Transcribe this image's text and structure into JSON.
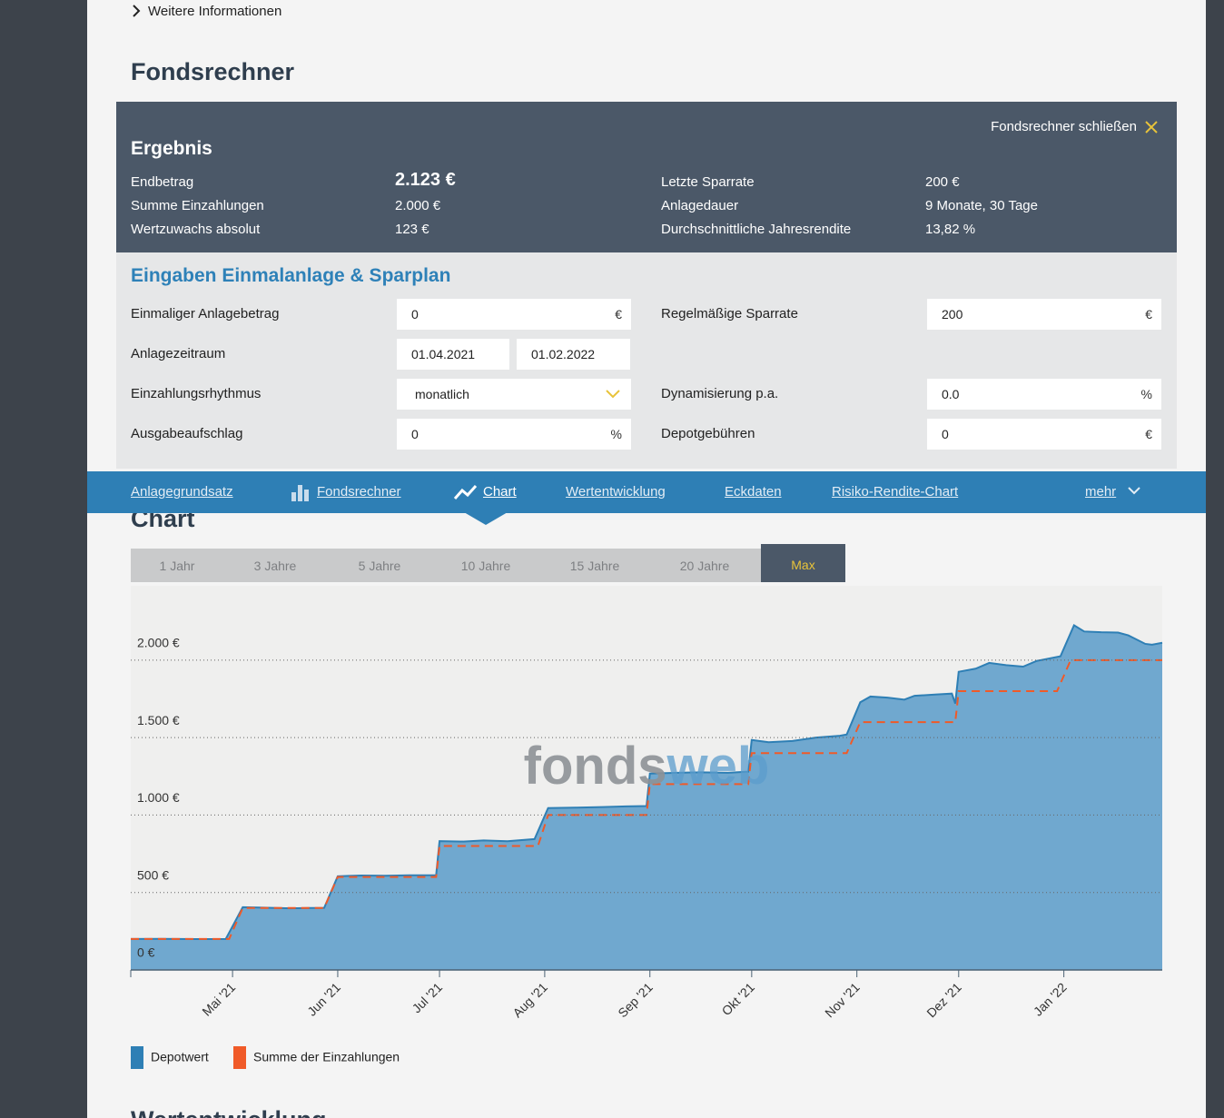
{
  "header": {
    "more_info": "Weitere Informationen",
    "title": "Fondsrechner"
  },
  "result": {
    "close": "Fondsrechner schließen",
    "title": "Ergebnis",
    "left": [
      {
        "label": "Endbetrag",
        "value": "2.123 €"
      },
      {
        "label": "Summe Einzahlungen",
        "value": "2.000 €"
      },
      {
        "label": "Wertzuwachs absolut",
        "value": "123 €"
      }
    ],
    "right": [
      {
        "label": "Letzte Sparrate",
        "value": "200 €"
      },
      {
        "label": "Anlagedauer",
        "value": "9 Monate, 30 Tage"
      },
      {
        "label": "Durchschnittliche Jahresrendite",
        "value": "13,82 %"
      }
    ]
  },
  "inputs": {
    "title": "Eingaben Einmalanlage & Sparplan",
    "fields": [
      {
        "label": "Einmaliger Anlagebetrag",
        "value": "0",
        "unit": "€"
      },
      {
        "label": "Regelmäßige Sparrate",
        "value": "200",
        "unit": "€"
      },
      {
        "label": "Anlagezeitraum",
        "from": "01.04.2021",
        "to": "01.02.2022"
      },
      {
        "label": "Einzahlungsrhythmus",
        "value": "monatlich"
      },
      {
        "label": "Dynamisierung p.a.",
        "value": "0.0",
        "unit": "%"
      },
      {
        "label": "Ausgabeaufschlag",
        "value": "0",
        "unit": "%"
      },
      {
        "label": "Depotgebühren",
        "value": "0",
        "unit": "€"
      }
    ]
  },
  "nav": {
    "items": [
      "Anlagegrundsatz",
      "Fondsrechner",
      "Chart",
      "Wertentwicklung",
      "Eckdaten",
      "Risiko-Rendite-Chart",
      "mehr"
    ]
  },
  "section_title": "Chart",
  "ranges": [
    "1 Jahr",
    "3 Jahre",
    "5 Jahre",
    "10 Jahre",
    "15 Jahre",
    "20 Jahre",
    "Max"
  ],
  "chart_data": {
    "type": "area",
    "watermark": [
      "fonds",
      "web"
    ],
    "xlim": [
      "2021-04-01",
      "2022-01-30"
    ],
    "xticks": [
      {
        "value": "2021-05-01",
        "label": "Mai '21"
      },
      {
        "value": "2021-06-01",
        "label": "Jun '21"
      },
      {
        "value": "2021-07-01",
        "label": "Jul '21"
      },
      {
        "value": "2021-08-01",
        "label": "Aug '21"
      },
      {
        "value": "2021-09-01",
        "label": "Sep '21"
      },
      {
        "value": "2021-10-01",
        "label": "Okt '21"
      },
      {
        "value": "2021-11-01",
        "label": "Nov '21"
      },
      {
        "value": "2021-12-01",
        "label": "Dez '21"
      },
      {
        "value": "2022-01-01",
        "label": "Jan '22"
      }
    ],
    "ylim": [
      0,
      2480
    ],
    "yticks": [
      {
        "value": 0,
        "label": "0 €"
      },
      {
        "value": 500,
        "label": "500 €"
      },
      {
        "value": 1000,
        "label": "1.000 €"
      },
      {
        "value": 1500,
        "label": "1.500 €"
      },
      {
        "value": 2000,
        "label": "2.000 €"
      }
    ],
    "grid": true,
    "series": [
      {
        "name": "Depotwert",
        "color": "#2e7fb5",
        "fill": "#70a8cf",
        "style": "area",
        "x": [
          "2021-04-01",
          "2021-04-10",
          "2021-04-20",
          "2021-04-29",
          "2021-05-04",
          "2021-05-10",
          "2021-05-18",
          "2021-05-24",
          "2021-05-28",
          "2021-06-01",
          "2021-06-08",
          "2021-06-15",
          "2021-06-22",
          "2021-06-30",
          "2021-07-01",
          "2021-07-08",
          "2021-07-14",
          "2021-07-21",
          "2021-07-29",
          "2021-08-02",
          "2021-08-10",
          "2021-08-18",
          "2021-08-25",
          "2021-08-31",
          "2021-09-01",
          "2021-09-08",
          "2021-09-16",
          "2021-09-24",
          "2021-09-30",
          "2021-10-01",
          "2021-10-06",
          "2021-10-13",
          "2021-10-20",
          "2021-10-27",
          "2021-10-29",
          "2021-11-02",
          "2021-11-05",
          "2021-11-10",
          "2021-11-15",
          "2021-11-18",
          "2021-11-24",
          "2021-11-29",
          "2021-11-30",
          "2021-12-01",
          "2021-12-06",
          "2021-12-10",
          "2021-12-15",
          "2021-12-20",
          "2021-12-24",
          "2021-12-31",
          "2022-01-04",
          "2022-01-07",
          "2022-01-12",
          "2022-01-17",
          "2022-01-20",
          "2022-01-25",
          "2022-01-27",
          "2022-01-30"
        ],
        "values": [
          200,
          201,
          199,
          200,
          405,
          402,
          398,
          400,
          401,
          605,
          610,
          608,
          611,
          612,
          832,
          829,
          836,
          831,
          845,
          1045,
          1048,
          1052,
          1056,
          1058,
          1268,
          1272,
          1276,
          1273,
          1280,
          1485,
          1470,
          1478,
          1500,
          1512,
          1520,
          1728,
          1765,
          1758,
          1745,
          1770,
          1778,
          1784,
          1720,
          1925,
          1945,
          1982,
          1968,
          1958,
          1995,
          2025,
          2225,
          2185,
          2180,
          2178,
          2160,
          2105,
          2100,
          2112
        ]
      },
      {
        "name": "Summe der Einzahlungen",
        "color": "#f05a28",
        "style": "dashed",
        "x": [
          "2021-04-01",
          "2021-04-30",
          "2021-05-04",
          "2021-05-28",
          "2021-06-01",
          "2021-06-30",
          "2021-07-01",
          "2021-07-30",
          "2021-08-02",
          "2021-08-31",
          "2021-09-01",
          "2021-09-30",
          "2021-10-01",
          "2021-10-29",
          "2021-11-02",
          "2021-11-30",
          "2021-12-01",
          "2021-12-30",
          "2022-01-03",
          "2022-01-30"
        ],
        "values": [
          200,
          200,
          400,
          400,
          600,
          600,
          800,
          800,
          1000,
          1000,
          1200,
          1200,
          1400,
          1400,
          1600,
          1600,
          1800,
          1800,
          2000,
          2000
        ]
      }
    ]
  },
  "next_section_title": "Wertentwicklung"
}
